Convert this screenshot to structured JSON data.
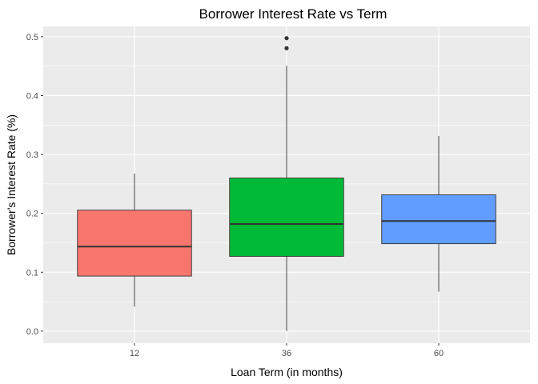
{
  "chart_data": {
    "type": "boxplot",
    "title": "Borrower Interest Rate vs Term",
    "xlabel": "Loan Term (in months)",
    "ylabel": "Borrower's Interest Rate (%)",
    "ylim": [
      -0.0205,
      0.5175
    ],
    "yticks": [
      0.0,
      0.1,
      0.2,
      0.3,
      0.4,
      0.5
    ],
    "ytick_labels": [
      "0.0",
      "0.1",
      "0.2",
      "0.3",
      "0.4",
      "0.5"
    ],
    "grid": true,
    "legend": "none",
    "categories": [
      "12",
      "36",
      "60"
    ],
    "boxes": [
      {
        "category": "12",
        "whisker_low": 0.0415,
        "q1": 0.0935,
        "median": 0.1435,
        "q3": 0.2055,
        "whisker_high": 0.2675,
        "outliers": [],
        "color": "#F8766D"
      },
      {
        "category": "36",
        "whisker_low": 0.0,
        "q1": 0.127,
        "median": 0.182,
        "q3": 0.26,
        "whisker_high": 0.451,
        "outliers": [
          0.4805,
          0.4975
        ],
        "color": "#00BA38"
      },
      {
        "category": "60",
        "whisker_low": 0.067,
        "q1": 0.1485,
        "median": 0.187,
        "q3": 0.2315,
        "whisker_high": 0.3315,
        "outliers": [],
        "color": "#619CFF"
      }
    ]
  }
}
